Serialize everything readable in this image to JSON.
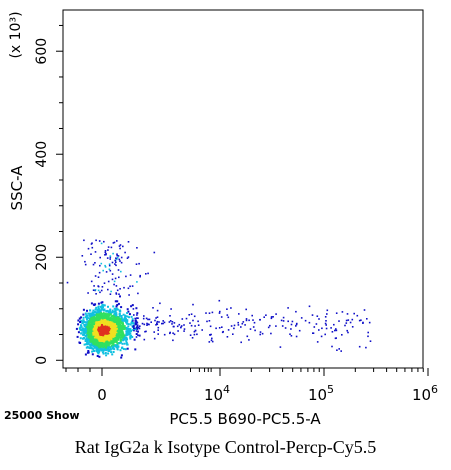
{
  "chart_data": {
    "type": "scatter",
    "xlabel": "PC5.5 B690-PC5.5-A",
    "ylabel": "SSC-A",
    "y_multiplier_label": "(x 10³)",
    "events_label": "25000 Show",
    "x_scale": "biexponential",
    "x_ticks": [
      {
        "value": 0,
        "label": "0",
        "exp": ""
      },
      {
        "value": 10000,
        "label": "10",
        "exp": "4"
      },
      {
        "value": 100000,
        "label": "10",
        "exp": "5"
      },
      {
        "value": 1000000,
        "label": "10",
        "exp": "6"
      }
    ],
    "y_ticks": [
      {
        "value": 0,
        "label": "0"
      },
      {
        "value": 200,
        "label": "200"
      },
      {
        "value": 400,
        "label": "400"
      },
      {
        "value": 600,
        "label": "600"
      }
    ],
    "ylim": [
      -15,
      680
    ],
    "density_center": {
      "x": 0,
      "y": 60
    },
    "grid": false
  },
  "caption": "Rat IgG2a k Isotype Control-Percp-Cy5.5",
  "colors": {
    "low": "#1010c8",
    "mid": "#10c0e0",
    "high": "#30e060",
    "peak": "#f0e020",
    "center": "#e03020"
  }
}
